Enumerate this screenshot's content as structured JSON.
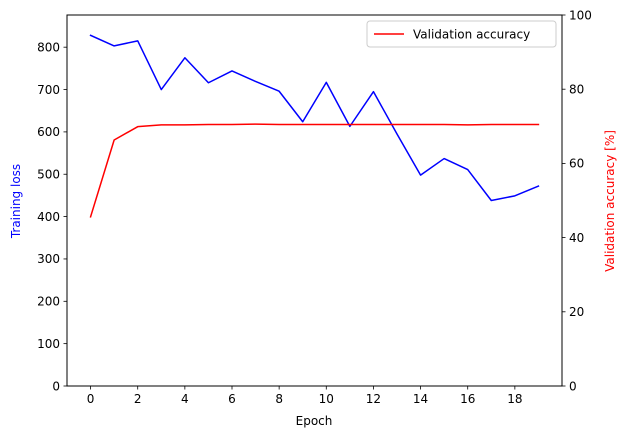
{
  "chart_data": {
    "type": "line",
    "xlabel": "Epoch",
    "ylabel_left": "Training loss",
    "ylabel_right": "Validation accuracy [%]",
    "colors": {
      "left": "#0000ff",
      "right": "#ff0000"
    },
    "x": [
      0,
      1,
      2,
      3,
      4,
      5,
      6,
      7,
      8,
      9,
      10,
      11,
      12,
      13,
      14,
      15,
      16,
      17,
      18,
      19
    ],
    "xlim": [
      -1,
      20
    ],
    "xticks": [
      "0",
      "2",
      "4",
      "6",
      "8",
      "10",
      "12",
      "14",
      "16",
      "18"
    ],
    "ylim_left": [
      0,
      876
    ],
    "yticks_left": [
      "0",
      "100",
      "200",
      "300",
      "400",
      "500",
      "600",
      "700",
      "800"
    ],
    "ylim_right": [
      0,
      100
    ],
    "yticks_right": [
      "0",
      "20",
      "40",
      "60",
      "80",
      "100"
    ],
    "series": [
      {
        "name": "",
        "axis": "left",
        "values": [
          828,
          803,
          815,
          700,
          775,
          716,
          744,
          719,
          696,
          624,
          717,
          613,
          695,
          595,
          498,
          537,
          511,
          438,
          449,
          472
        ]
      },
      {
        "name": "Validation accuracy",
        "axis": "right",
        "values": [
          45.6,
          66.3,
          69.9,
          70.4,
          70.4,
          70.5,
          70.5,
          70.6,
          70.5,
          70.5,
          70.5,
          70.5,
          70.5,
          70.5,
          70.5,
          70.5,
          70.4,
          70.5,
          70.5,
          70.5
        ]
      }
    ],
    "legend": {
      "placement": "top-right",
      "label": "Validation accuracy"
    },
    "grid": false
  }
}
